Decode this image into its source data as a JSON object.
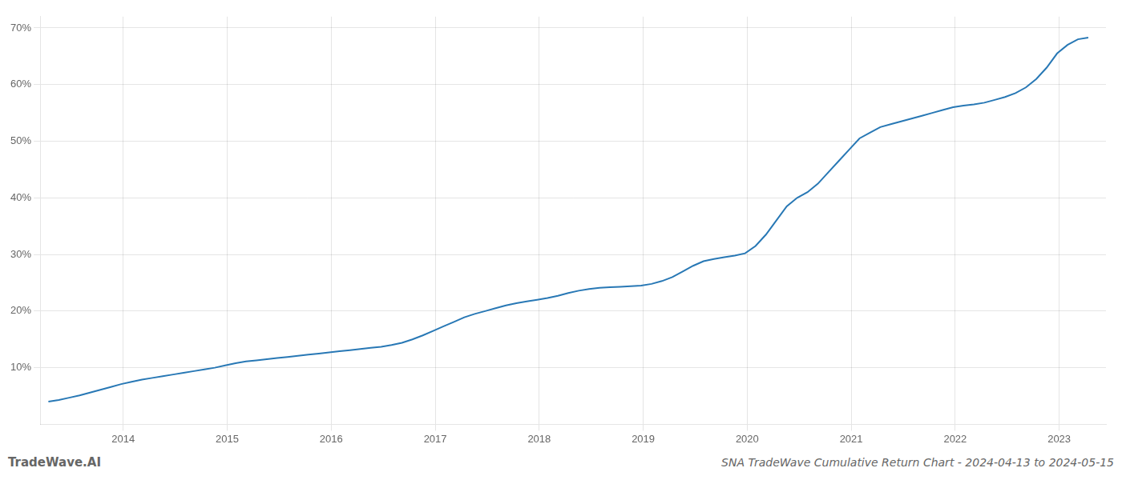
{
  "chart_data": {
    "type": "line",
    "title": "SNA TradeWave Cumulative Return Chart - 2024-04-13 to 2024-05-15",
    "annotations": [
      "TradeWave.AI"
    ],
    "x": [
      2013.28,
      2013.38,
      2013.48,
      2013.58,
      2013.68,
      2013.78,
      2013.88,
      2013.98,
      2014.08,
      2014.18,
      2014.28,
      2014.38,
      2014.48,
      2014.58,
      2014.68,
      2014.78,
      2014.88,
      2014.98,
      2015.08,
      2015.18,
      2015.28,
      2015.38,
      2015.48,
      2015.58,
      2015.68,
      2015.78,
      2015.88,
      2015.98,
      2016.08,
      2016.18,
      2016.28,
      2016.38,
      2016.48,
      2016.58,
      2016.68,
      2016.78,
      2016.88,
      2016.98,
      2017.08,
      2017.18,
      2017.28,
      2017.38,
      2017.48,
      2017.58,
      2017.68,
      2017.78,
      2017.88,
      2017.98,
      2018.08,
      2018.18,
      2018.28,
      2018.38,
      2018.48,
      2018.58,
      2018.68,
      2018.78,
      2018.88,
      2018.98,
      2019.08,
      2019.18,
      2019.28,
      2019.38,
      2019.48,
      2019.58,
      2019.68,
      2019.78,
      2019.88,
      2019.98,
      2020.08,
      2020.18,
      2020.28,
      2020.38,
      2020.48,
      2020.58,
      2020.68,
      2020.78,
      2020.88,
      2020.98,
      2021.08,
      2021.18,
      2021.28,
      2021.38,
      2021.48,
      2021.58,
      2021.68,
      2021.78,
      2021.88,
      2021.98,
      2022.08,
      2022.18,
      2022.28,
      2022.38,
      2022.48,
      2022.58,
      2022.68,
      2022.78,
      2022.88,
      2022.98,
      2023.08,
      2023.18,
      2023.28
    ],
    "values": [
      4.0,
      4.3,
      4.7,
      5.1,
      5.6,
      6.1,
      6.6,
      7.1,
      7.5,
      7.9,
      8.2,
      8.5,
      8.8,
      9.1,
      9.4,
      9.7,
      10.0,
      10.4,
      10.8,
      11.1,
      11.3,
      11.5,
      11.7,
      11.9,
      12.1,
      12.3,
      12.5,
      12.7,
      12.9,
      13.1,
      13.3,
      13.5,
      13.7,
      14.0,
      14.4,
      15.0,
      15.7,
      16.5,
      17.3,
      18.1,
      18.9,
      19.5,
      20.0,
      20.5,
      21.0,
      21.4,
      21.7,
      22.0,
      22.3,
      22.7,
      23.2,
      23.6,
      23.9,
      24.1,
      24.2,
      24.3,
      24.4,
      24.5,
      24.8,
      25.3,
      26.0,
      27.0,
      28.0,
      28.8,
      29.2,
      29.5,
      29.8,
      30.2,
      31.5,
      33.5,
      36.0,
      38.5,
      40.0,
      41.0,
      42.5,
      44.5,
      46.5,
      48.5,
      50.5,
      51.5,
      52.5,
      53.0,
      53.5,
      54.0,
      54.5,
      55.0,
      55.5,
      56.0,
      56.3,
      56.5,
      56.8,
      57.3,
      57.8,
      58.5,
      59.5,
      61.0,
      63.0,
      65.5,
      67.0,
      68.0,
      68.3
    ],
    "color": "#2878b5",
    "xlim": [
      2013.2,
      2023.45
    ],
    "xticks": [
      2014,
      2015,
      2016,
      2017,
      2018,
      2019,
      2020,
      2021,
      2022,
      2023
    ],
    "ylim": [
      0,
      72
    ],
    "yticks": [
      {
        "value": 10,
        "label": "10%"
      },
      {
        "value": 20,
        "label": "20%"
      },
      {
        "value": 30,
        "label": "30%"
      },
      {
        "value": 40,
        "label": "40%"
      },
      {
        "value": 50,
        "label": "50%"
      },
      {
        "value": 60,
        "label": "60%"
      },
      {
        "value": 70,
        "label": "70%"
      }
    ],
    "grid": true
  }
}
